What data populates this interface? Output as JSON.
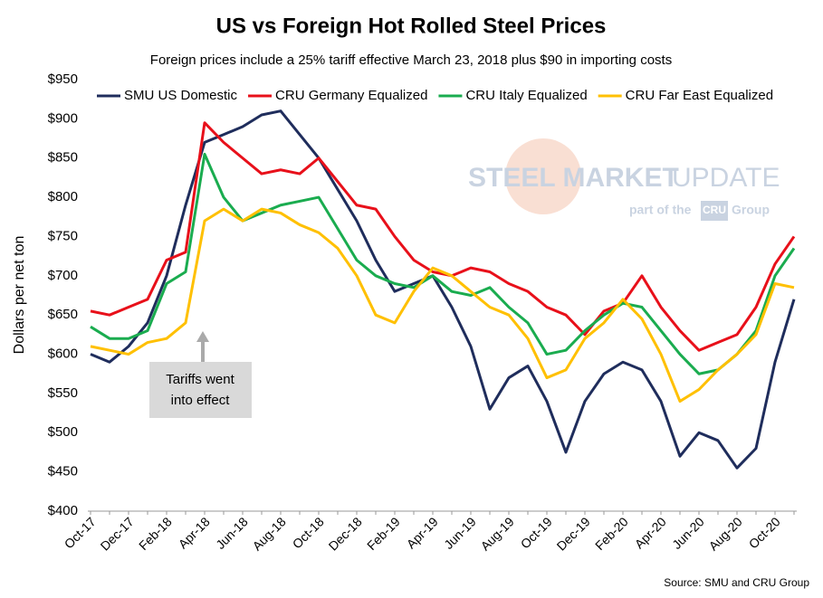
{
  "chart_data": {
    "type": "line",
    "title": "US vs Foreign Hot Rolled Steel Prices",
    "subtitle": "Foreign prices include a 25% tariff effective March 23, 2018 plus $90 in importing costs",
    "y_label": "Dollars per net ton",
    "source": "Source: SMU and CRU Group",
    "annotation": [
      "Tariffs went",
      "into effect"
    ],
    "watermark": {
      "brand_bold": "STEEL MARKET",
      "brand_light": "UPDATE",
      "part": "part of the",
      "cru": "CRU",
      "group": "Group"
    },
    "grid": false,
    "legend": "top",
    "categories": [
      "Oct-17",
      null,
      "Dec-17",
      null,
      "Feb-18",
      null,
      "Apr-18",
      null,
      "Jun-18",
      null,
      "Aug-18",
      null,
      "Oct-18",
      null,
      "Dec-18",
      null,
      "Feb-19",
      null,
      "Apr-19",
      null,
      "Jun-19",
      null,
      "Aug-19",
      null,
      "Oct-19",
      null,
      "Dec-19",
      null,
      "Feb-20",
      null,
      "Apr-20",
      null,
      "Jun-20",
      null,
      "Aug-20",
      null,
      "Oct-20",
      null
    ],
    "ylim": [
      400,
      950
    ],
    "yticks": [
      {
        "value": 400,
        "label": "$400"
      },
      {
        "value": 450,
        "label": "$450"
      },
      {
        "value": 500,
        "label": "$500"
      },
      {
        "value": 550,
        "label": "$550"
      },
      {
        "value": 600,
        "label": "$600"
      },
      {
        "value": 650,
        "label": "$650"
      },
      {
        "value": 700,
        "label": "$700"
      },
      {
        "value": 750,
        "label": "$750"
      },
      {
        "value": 800,
        "label": "$800"
      },
      {
        "value": 850,
        "label": "$850"
      },
      {
        "value": 900,
        "label": "$900"
      },
      {
        "value": 950,
        "label": "$950"
      }
    ],
    "series": [
      {
        "name": "SMU US Domestic",
        "color": "#1f2d5c",
        "values": [
          600,
          590,
          610,
          640,
          700,
          790,
          870,
          880,
          890,
          905,
          910,
          880,
          850,
          810,
          770,
          720,
          680,
          690,
          700,
          660,
          610,
          530,
          570,
          585,
          540,
          475,
          540,
          575,
          590,
          580,
          540,
          470,
          500,
          490,
          455,
          480,
          590,
          670
        ]
      },
      {
        "name": "CRU Germany Equalized",
        "color": "#e8101a",
        "values": [
          655,
          650,
          660,
          670,
          720,
          730,
          895,
          870,
          850,
          830,
          835,
          830,
          850,
          820,
          790,
          785,
          750,
          720,
          705,
          700,
          710,
          705,
          690,
          680,
          660,
          650,
          625,
          655,
          665,
          700,
          660,
          630,
          605,
          615,
          625,
          660,
          715,
          750
        ]
      },
      {
        "name": "CRU Italy Equalized",
        "color": "#1aac4f",
        "values": [
          635,
          620,
          620,
          630,
          690,
          705,
          855,
          800,
          770,
          780,
          790,
          795,
          800,
          760,
          720,
          700,
          690,
          685,
          700,
          680,
          675,
          685,
          660,
          640,
          600,
          605,
          630,
          650,
          665,
          660,
          630,
          600,
          575,
          580,
          600,
          630,
          700,
          735
        ]
      },
      {
        "name": "CRU Far East Equalized",
        "color": "#ffc000",
        "values": [
          610,
          605,
          600,
          615,
          620,
          640,
          770,
          785,
          770,
          785,
          780,
          765,
          755,
          735,
          700,
          650,
          640,
          680,
          710,
          700,
          680,
          660,
          650,
          620,
          570,
          580,
          620,
          640,
          670,
          645,
          600,
          540,
          555,
          580,
          600,
          625,
          690,
          685
        ]
      }
    ]
  }
}
